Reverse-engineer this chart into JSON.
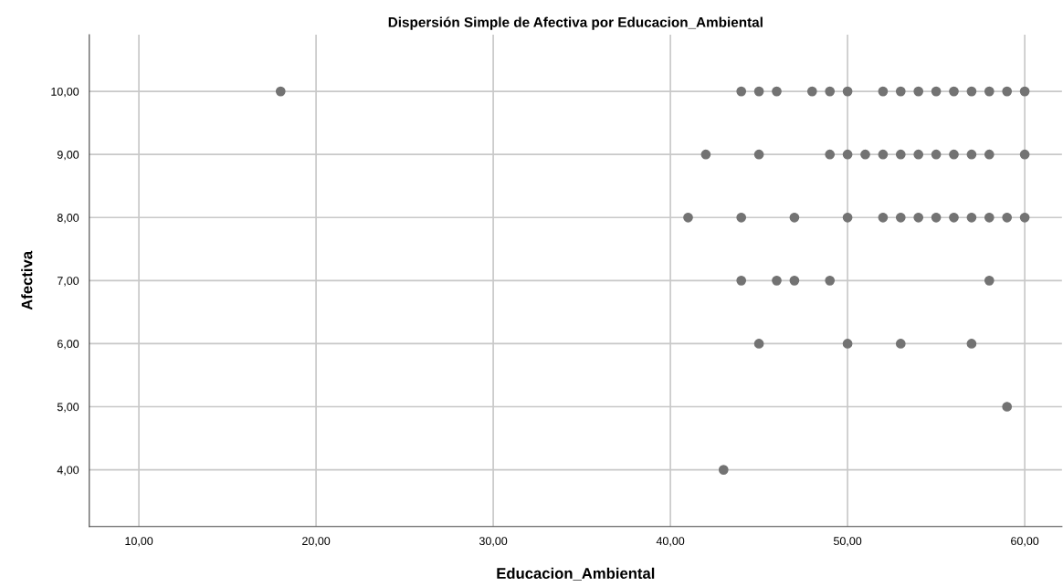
{
  "chart_data": {
    "type": "scatter",
    "title": "Dispersión Simple de Afectiva por Educacion_Ambiental",
    "xlabel": "Educacion_Ambiental",
    "ylabel": "Afectiva",
    "series": [
      {
        "color": "#737373",
        "x": [
          18,
          44,
          45,
          46,
          48,
          49,
          50,
          52,
          53,
          54,
          55,
          56,
          57,
          58,
          59,
          60,
          42,
          45,
          49,
          50,
          51,
          52,
          53,
          54,
          55,
          56,
          57,
          58,
          60,
          41,
          44,
          47,
          50,
          52,
          53,
          54,
          55,
          56,
          57,
          58,
          59,
          60,
          44,
          46,
          47,
          49,
          58,
          45,
          50,
          53,
          57,
          59,
          43
        ],
        "values": [
          10,
          10,
          10,
          10,
          10,
          10,
          10,
          10,
          10,
          10,
          10,
          10,
          10,
          10,
          10,
          10,
          9,
          9,
          9,
          9,
          9,
          9,
          9,
          9,
          9,
          9,
          9,
          9,
          9,
          8,
          8,
          8,
          8,
          8,
          8,
          8,
          8,
          8,
          8,
          8,
          8,
          8,
          7,
          7,
          7,
          7,
          7,
          6,
          6,
          6,
          6,
          5,
          4
        ]
      }
    ],
    "xlim": [
      7.2,
      62.1
    ],
    "ylim": [
      3.1,
      10.9
    ],
    "xticks": [
      {
        "value": 10,
        "label": "10,00"
      },
      {
        "value": 20,
        "label": "20,00"
      },
      {
        "value": 30,
        "label": "30,00"
      },
      {
        "value": 40,
        "label": "40,00"
      },
      {
        "value": 50,
        "label": "50,00"
      },
      {
        "value": 60,
        "label": "60,00"
      }
    ],
    "yticks": [
      {
        "value": 4,
        "label": "4,00"
      },
      {
        "value": 5,
        "label": "5,00"
      },
      {
        "value": 6,
        "label": "6,00"
      },
      {
        "value": 7,
        "label": "7,00"
      },
      {
        "value": 8,
        "label": "8,00"
      },
      {
        "value": 9,
        "label": "9,00"
      },
      {
        "value": 10,
        "label": "10,00"
      }
    ],
    "grid": true,
    "marker": "circle"
  }
}
